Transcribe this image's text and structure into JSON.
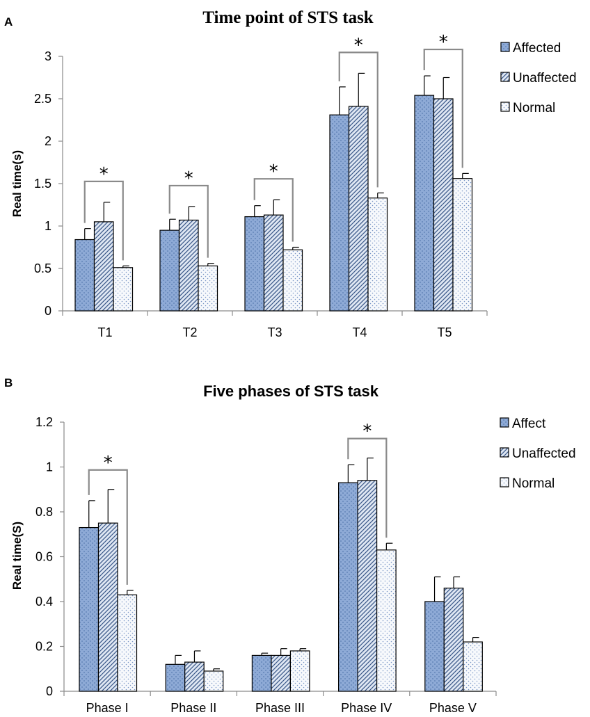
{
  "chart_data": [
    {
      "type": "bar",
      "panel": "A",
      "title": "Time point of STS task",
      "xlabel": "",
      "ylabel": "Real time(s)",
      "ylim": [
        0,
        3
      ],
      "yticks": [
        "0",
        "0.5",
        "1",
        "1.5",
        "2",
        "2.5",
        "3"
      ],
      "categories": [
        "T1",
        "T2",
        "T3",
        "T4",
        "T5"
      ],
      "legend_position": "right",
      "series": [
        {
          "name": "Affected",
          "values": [
            0.84,
            0.95,
            1.11,
            2.31,
            2.54
          ],
          "errors": [
            0.13,
            0.13,
            0.13,
            0.33,
            0.23
          ],
          "color": "#8eaad6"
        },
        {
          "name": "Unaffected",
          "values": [
            1.05,
            1.07,
            1.13,
            2.41,
            2.5
          ],
          "errors": [
            0.23,
            0.16,
            0.18,
            0.39,
            0.25
          ],
          "color": "#c8d6ea"
        },
        {
          "name": "Normal",
          "values": [
            0.51,
            0.53,
            0.72,
            1.33,
            1.56
          ],
          "errors": [
            0.02,
            0.03,
            0.03,
            0.06,
            0.06
          ],
          "color": "#eef3f9"
        }
      ],
      "significance": [
        {
          "category": "T1",
          "label": "*"
        },
        {
          "category": "T2",
          "label": "*"
        },
        {
          "category": "T3",
          "label": "*"
        },
        {
          "category": "T4",
          "label": "*"
        },
        {
          "category": "T5",
          "label": "*"
        }
      ]
    },
    {
      "type": "bar",
      "panel": "B",
      "title": "Five phases of STS task",
      "xlabel": "",
      "ylabel": "Real time(S)",
      "ylim": [
        0,
        1.2
      ],
      "yticks": [
        "0",
        "0.2",
        "0.4",
        "0.6",
        "0.8",
        "1",
        "1.2"
      ],
      "categories": [
        "Phase I",
        "Phase II",
        "Phase III",
        "Phase IV",
        "Phase V"
      ],
      "legend_position": "right",
      "series": [
        {
          "name": "Affect",
          "values": [
            0.73,
            0.12,
            0.16,
            0.93,
            0.4
          ],
          "errors": [
            0.12,
            0.04,
            0.01,
            0.08,
            0.11
          ],
          "color": "#8eaad6"
        },
        {
          "name": "Unaffected",
          "values": [
            0.75,
            0.13,
            0.16,
            0.94,
            0.46
          ],
          "errors": [
            0.15,
            0.05,
            0.03,
            0.1,
            0.05
          ],
          "color": "#c8d6ea"
        },
        {
          "name": "Normal",
          "values": [
            0.43,
            0.09,
            0.18,
            0.63,
            0.22
          ],
          "errors": [
            0.02,
            0.01,
            0.01,
            0.03,
            0.02
          ],
          "color": "#eef3f9"
        }
      ],
      "significance": [
        {
          "category": "Phase I",
          "label": "*"
        },
        {
          "category": "Phase IV",
          "label": "*"
        }
      ]
    }
  ]
}
